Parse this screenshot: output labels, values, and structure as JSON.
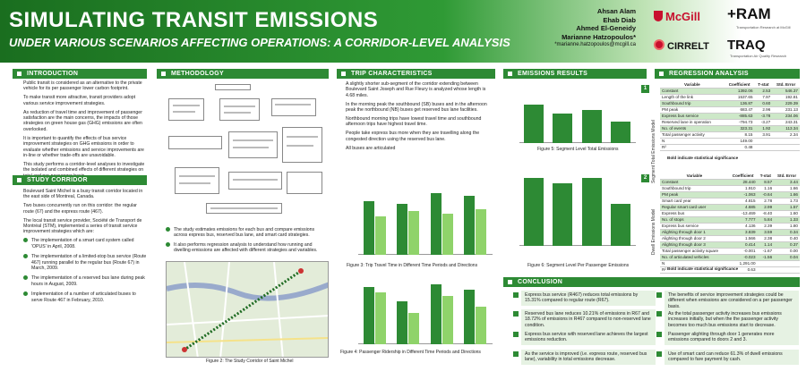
{
  "header": {
    "title": "SIMULATING TRANSIT EMISSIONS",
    "subtitle": "UNDER VARIOUS SCENARIOS AFFECTING OPERATIONS: A CORRIDOR-LEVEL ANALYSIS",
    "authors": [
      "Ahsan Alam",
      "Ehab Diab",
      "Ahmed El-Geneidy",
      "Marianne Hatzopoulos*"
    ],
    "email": "*marianne.hatzopoulos@mcgill.ca",
    "logos": {
      "mcgill": "McGill",
      "cirrelt": "CIRRELT",
      "tram": "+RAM",
      "tram_sub": "Transportation Research at McGill",
      "traq": "TRAQ",
      "traq_sub": "Transportation Air Quality Research"
    }
  },
  "intro": {
    "heading": "INTRODUCTION",
    "p1": "Public transit is considered as an alternative to the private vehicle for its per passenger lower carbon footprint.",
    "p2": "To make transit more attractive, transit providers adopt various service improvement strategies.",
    "p3": "As reduction of travel time and improvement of passenger satisfaction are the main concerns, the impacts of those strategies on green house gas (GHG) emissions are often overlooked.",
    "p4": "It is important to quantify the effects of bus service improvement strategies on GHG emissions in order to evaluate whether emissions and service improvements are in-line or whether trade-offs are unavoidable.",
    "p5": "This study performs a corridor-level analyses to investigate the isolated and combined effects of different strategies on total and per-passenger basis"
  },
  "study": {
    "heading": "STUDY CORRIDOR",
    "p1": "Boulevard Saint Michel is a busy transit corridor located in the east side of Montreal, Canada.",
    "p2": "Two buses concurrently run on this corridor: the regular route (67) and the express route (467).",
    "p3": "The local transit service provider, Société de Transport de Montréal (STM), implemented a series of transit service improvement strategies which are:",
    "items": [
      "The implementation of a smart card system called 'OPUS' in April, 2008.",
      "The implementation of a limited-stop bus service (Route 467) running parallel to the regular bus (Route 67) in March, 2009.",
      "The implementation of a reserved bus lane during peak hours in August, 2009.",
      "Implementation of a number of articulated buses to serve Route 467 in February, 2010."
    ]
  },
  "methodology": {
    "heading": "METHODOLOGY",
    "p1": "The study estimates emissions for each bus and compare emissions across express bus, reserved bus lane, and smart card strategies.",
    "p2": "It also performs regression analysis to understand how running and dwelling emissions are affected with different strategies and variables.",
    "map_caption": "Figure 2: The Study Corridor of Saint Michel"
  },
  "trip": {
    "heading": "TRIP CHARACTERISTICS",
    "p1": "A slightly shorter sub-segment of the corridor extending between Boulevard Saint Joseph and Rue Fleury is analyzed whose length is 4.68 miles.",
    "p2": "In the morning peak the southbound (SB) buses and in the afternoon peak the northbound (NB) buses get reserved bus lane facilities.",
    "p3": "Northbound morning trips have lowest travel time and southbound afternoon trips have highest travel time.",
    "p4": "People take express bus more when they are travelling along the congested direction using the reserved bus lane.",
    "p5": "All buses are articulated",
    "fig3_caption": "Figure 3: Trip Travel Time in Different Time Periods and Directions",
    "fig4_caption": "Figure 4: Passenger Ridership in Different Time Periods and Directions"
  },
  "emissions": {
    "heading": "EMISSIONS RESULTS",
    "fig5_caption": "Figure 5: Segment Level Total Emissions",
    "fig6_caption": "Figure 6: Segment Level Per Passenger Emissions"
  },
  "regression": {
    "heading": "REGRESSION ANALYSIS",
    "model1_label": "Segment Total Emissions Model",
    "model2_label": "Dwell Emissions Model",
    "t1_cols": [
      "Variable",
      "Coefficient",
      "T-stat",
      "Std. Error"
    ],
    "t1_rows": [
      [
        "Constant",
        "1392.06",
        "2.53",
        "546.37"
      ],
      [
        "Length of the link",
        "1537.65",
        "7.97",
        "192.81"
      ],
      [
        "Southbound trip",
        "136.87",
        "0.60",
        "229.39"
      ],
      [
        "PM peak",
        "683.47",
        "2.96",
        "231.13"
      ],
      [
        "Express bus service",
        "-885.63",
        "-3.78",
        "234.06"
      ],
      [
        "Reserved lane in operation",
        "-794.73",
        "-3.27",
        "243.31"
      ],
      [
        "No. of events",
        "323.31",
        "1.92",
        "113.34"
      ],
      [
        "Total passenger activity",
        "8.15",
        "3.91",
        "2.34"
      ],
      [
        "N",
        "149.00",
        "",
        ""
      ],
      [
        "R²",
        "0.48",
        "",
        ""
      ]
    ],
    "t1_note": "Bold indicate statistical significance",
    "t2_cols": [
      "Variable",
      "Coefficient",
      "T-stat",
      "Std. Error"
    ],
    "t2_rows": [
      [
        "Constant",
        "28.440",
        "8.57",
        "3.44"
      ],
      [
        "Southbound trip",
        "1.910",
        "1.16",
        "1.66"
      ],
      [
        "PM peak",
        "-1.063",
        "-0.64",
        "1.66"
      ],
      [
        "Smart card year",
        "4.815",
        "2.78",
        "1.73"
      ],
      [
        "Regular smart card user",
        "4.685",
        "2.99",
        "1.57"
      ],
      [
        "Express bus",
        "-13.469",
        "-8.40",
        "1.60"
      ],
      [
        "No. of stops",
        "7.777",
        "5.84",
        "1.33"
      ],
      [
        "Express bus service",
        "4.136",
        "2.39",
        "1.80"
      ],
      [
        "Alighting through door 1",
        "3.839",
        "3.59",
        "0.34"
      ],
      [
        "Alighting through door 2",
        "1.566",
        "2.38",
        "0.40"
      ],
      [
        "Alighting through door 3",
        "0.414",
        "1.14",
        "0.37"
      ],
      [
        "Total passenger activity square",
        "-0.001",
        "-1.67",
        "0.00"
      ],
      [
        "No. of articulated vehicles",
        "-0.023",
        "-1.56",
        "0.04"
      ],
      [
        "N",
        "1,291.00",
        "",
        ""
      ],
      [
        "R²",
        "0.63",
        "",
        ""
      ]
    ],
    "t2_note": "Bold indicate statistical significance"
  },
  "conclusion": {
    "heading": "CONCLUSION",
    "left": [
      "Express bus service (R467) reduces total emissions by 15.31% compared to regular route (R67).",
      "Reserved bus lane reduces 10.21% of emissions in R67 and 18.72% of emissions in R467 compared to non-reserved lane condition.",
      "Express bus service with reserved lane achieves the largest emissions reduction.",
      "As the service is improved (i.e. express route, reserved bus lane), variability in total emissions decrease."
    ],
    "right": [
      "The benefits of service improvement strategies could be different when emissions are considered on a per passenger basis.",
      "As the total passenger activity increases bus emissions increases initially, but when the the passenger activity becomes too much bus emissions start to decrease.",
      "Passenger alighting through door 1 generates more emissions compared to doors 2 and 3.",
      "Use of smart card can reduce 61.3% of dwell emissions compared to fare payment by cash."
    ]
  },
  "colors": {
    "accent": "#2d8a34",
    "light_accent": "#8fd36a",
    "highlight": "#cde8c8"
  },
  "chart_data": [
    {
      "type": "bar",
      "title": "Figure 3: Trip Travel Time in Different Time Periods and Directions",
      "categories": [
        "1",
        "2",
        "3",
        "4"
      ],
      "series": [
        {
          "values": [
            21,
            20,
            24,
            23
          ]
        },
        {
          "values": [
            15,
            17,
            16,
            18
          ]
        }
      ],
      "ylim": [
        0,
        28
      ]
    },
    {
      "type": "bar",
      "title": "Figure 4: Passenger Ridership in Different Time Periods and Directions",
      "categories": [
        "1",
        "2",
        "3",
        "4"
      ],
      "series": [
        {
          "values": [
            40,
            30,
            42,
            38
          ]
        },
        {
          "values": [
            36,
            22,
            34,
            26
          ]
        }
      ],
      "ylim": [
        0,
        50
      ]
    },
    {
      "type": "bar",
      "title": "Figure 5: Segment Level Total Emissions",
      "categories": [
        "1",
        "2",
        "3",
        "4"
      ],
      "series": [
        {
          "values": [
            72,
            55,
            62,
            40
          ]
        }
      ],
      "ylim": [
        0,
        100
      ]
    },
    {
      "type": "bar",
      "title": "Figure 6: Segment Level Per Passenger Emissions",
      "categories": [
        "1",
        "2",
        "3",
        "4"
      ],
      "series": [
        {
          "values": [
            80,
            74,
            80,
            50
          ]
        }
      ],
      "ylim": [
        0,
        100
      ]
    }
  ]
}
